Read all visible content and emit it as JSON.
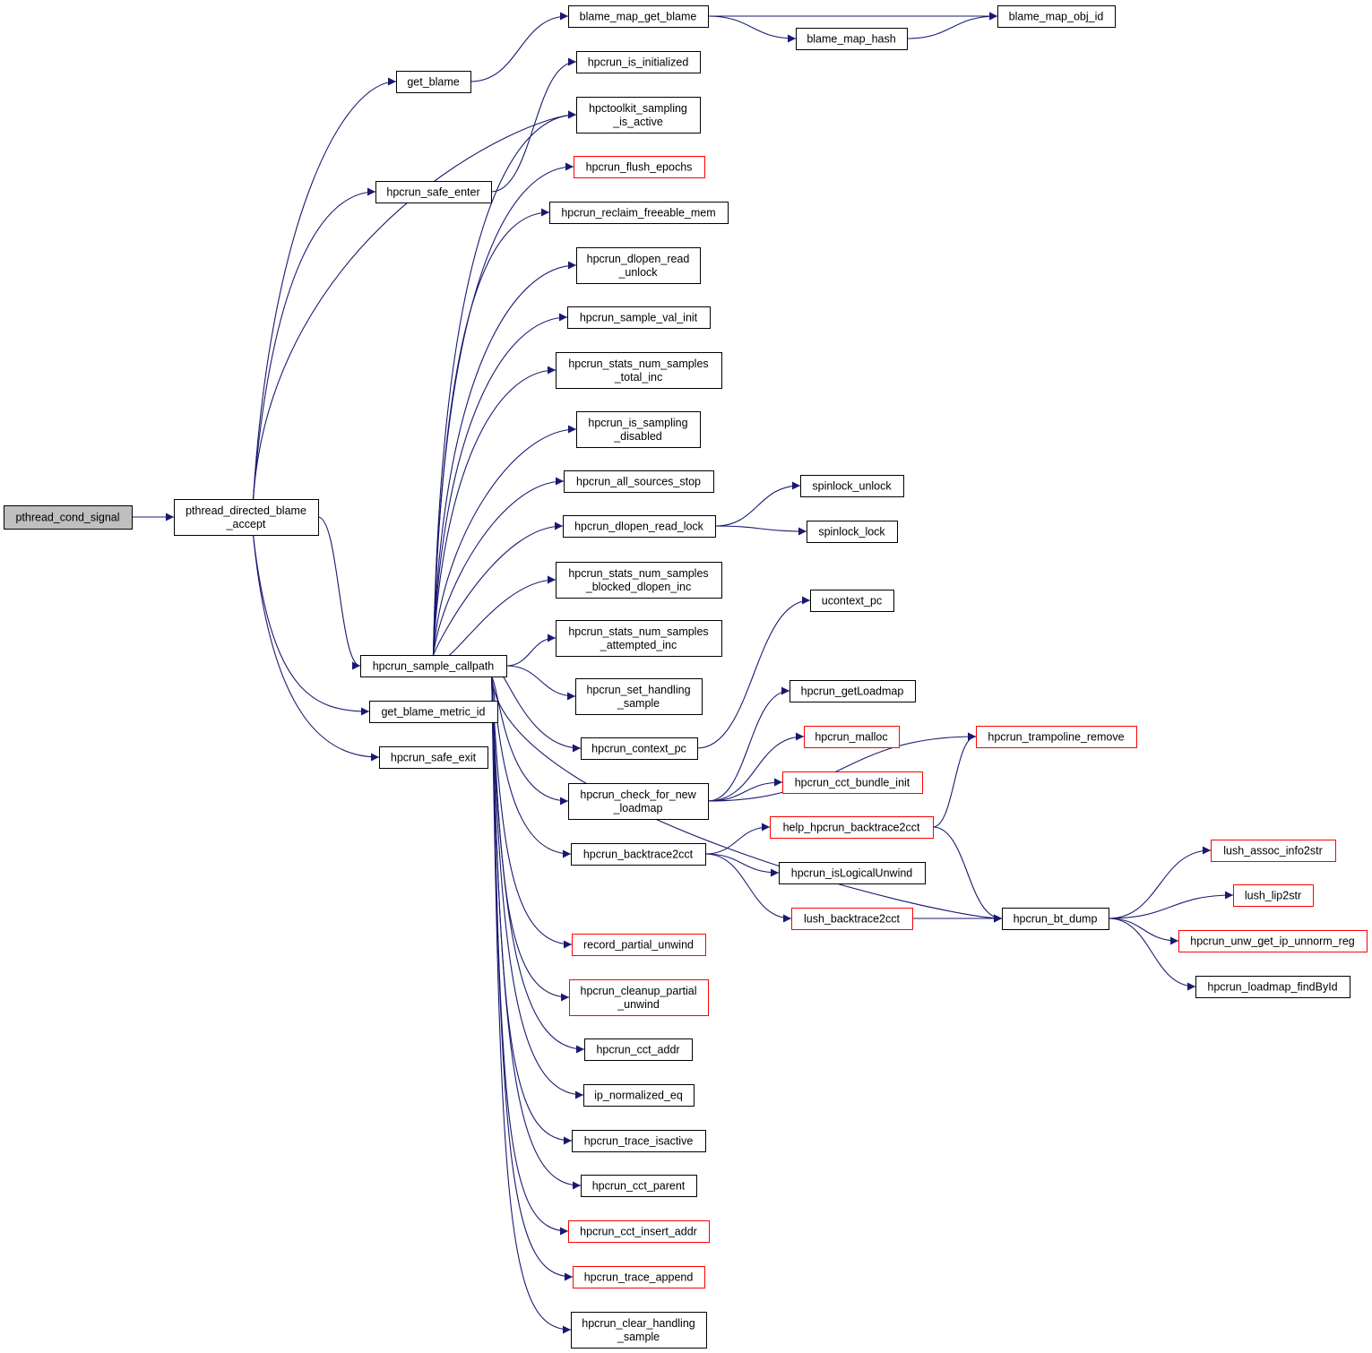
{
  "colors": {
    "edge": "#191970",
    "normal_border": "#000000",
    "truncated_border": "#ff0000",
    "root_fill": "#bfbfbf",
    "node_fill": "#ffffff"
  },
  "nodes": [
    {
      "id": "pthread_cond_signal",
      "lines": [
        "pthread_cond_signal"
      ],
      "style": "root"
    },
    {
      "id": "pthread_directed_blame_accept",
      "lines": [
        "pthread_directed_blame",
        "_accept"
      ],
      "style": "normal"
    },
    {
      "id": "get_blame",
      "lines": [
        "get_blame"
      ],
      "style": "normal"
    },
    {
      "id": "hpcrun_safe_enter",
      "lines": [
        "hpcrun_safe_enter"
      ],
      "style": "normal"
    },
    {
      "id": "hpcrun_sample_callpath",
      "lines": [
        "hpcrun_sample_callpath"
      ],
      "style": "normal"
    },
    {
      "id": "get_blame_metric_id",
      "lines": [
        "get_blame_metric_id"
      ],
      "style": "normal"
    },
    {
      "id": "hpcrun_safe_exit",
      "lines": [
        "hpcrun_safe_exit"
      ],
      "style": "normal"
    },
    {
      "id": "blame_map_get_blame",
      "lines": [
        "blame_map_get_blame"
      ],
      "style": "normal"
    },
    {
      "id": "blame_map_obj_id",
      "lines": [
        "blame_map_obj_id"
      ],
      "style": "normal"
    },
    {
      "id": "blame_map_hash",
      "lines": [
        "blame_map_hash"
      ],
      "style": "normal"
    },
    {
      "id": "hpcrun_is_initialized",
      "lines": [
        "hpcrun_is_initialized"
      ],
      "style": "normal"
    },
    {
      "id": "hpctoolkit_sampling_is_active",
      "lines": [
        "hpctoolkit_sampling",
        "_is_active"
      ],
      "style": "normal"
    },
    {
      "id": "hpcrun_flush_epochs",
      "lines": [
        "hpcrun_flush_epochs"
      ],
      "style": "truncated"
    },
    {
      "id": "hpcrun_reclaim_freeable_mem",
      "lines": [
        "hpcrun_reclaim_freeable_mem"
      ],
      "style": "normal"
    },
    {
      "id": "hpcrun_dlopen_read_unlock",
      "lines": [
        "hpcrun_dlopen_read",
        "_unlock"
      ],
      "style": "normal"
    },
    {
      "id": "hpcrun_sample_val_init",
      "lines": [
        "hpcrun_sample_val_init"
      ],
      "style": "normal"
    },
    {
      "id": "hpcrun_stats_num_samples_total_inc",
      "lines": [
        "hpcrun_stats_num_samples",
        "_total_inc"
      ],
      "style": "normal"
    },
    {
      "id": "hpcrun_is_sampling_disabled",
      "lines": [
        "hpcrun_is_sampling",
        "_disabled"
      ],
      "style": "normal"
    },
    {
      "id": "hpcrun_all_sources_stop",
      "lines": [
        "hpcrun_all_sources_stop"
      ],
      "style": "normal"
    },
    {
      "id": "hpcrun_dlopen_read_lock",
      "lines": [
        "hpcrun_dlopen_read_lock"
      ],
      "style": "normal"
    },
    {
      "id": "spinlock_unlock",
      "lines": [
        "spinlock_unlock"
      ],
      "style": "normal"
    },
    {
      "id": "spinlock_lock",
      "lines": [
        "spinlock_lock"
      ],
      "style": "normal"
    },
    {
      "id": "hpcrun_stats_num_samples_blocked_dlopen_inc",
      "lines": [
        "hpcrun_stats_num_samples",
        "_blocked_dlopen_inc"
      ],
      "style": "normal"
    },
    {
      "id": "hpcrun_stats_num_samples_attempted_inc",
      "lines": [
        "hpcrun_stats_num_samples",
        "_attempted_inc"
      ],
      "style": "normal"
    },
    {
      "id": "hpcrun_set_handling_sample",
      "lines": [
        "hpcrun_set_handling",
        "_sample"
      ],
      "style": "normal"
    },
    {
      "id": "hpcrun_context_pc",
      "lines": [
        "hpcrun_context_pc"
      ],
      "style": "normal"
    },
    {
      "id": "ucontext_pc",
      "lines": [
        "ucontext_pc"
      ],
      "style": "normal"
    },
    {
      "id": "hpcrun_check_for_new_loadmap",
      "lines": [
        "hpcrun_check_for_new",
        "_loadmap"
      ],
      "style": "normal"
    },
    {
      "id": "hpcrun_getLoadmap",
      "lines": [
        "hpcrun_getLoadmap"
      ],
      "style": "normal"
    },
    {
      "id": "hpcrun_malloc",
      "lines": [
        "hpcrun_malloc"
      ],
      "style": "truncated"
    },
    {
      "id": "hpcrun_trampoline_remove",
      "lines": [
        "hpcrun_trampoline_remove"
      ],
      "style": "truncated"
    },
    {
      "id": "hpcrun_cct_bundle_init",
      "lines": [
        "hpcrun_cct_bundle_init"
      ],
      "style": "truncated"
    },
    {
      "id": "help_hpcrun_backtrace2cct",
      "lines": [
        "help_hpcrun_backtrace2cct"
      ],
      "style": "truncated"
    },
    {
      "id": "hpcrun_backtrace2cct",
      "lines": [
        "hpcrun_backtrace2cct"
      ],
      "style": "normal"
    },
    {
      "id": "hpcrun_isLogicalUnwind",
      "lines": [
        "hpcrun_isLogicalUnwind"
      ],
      "style": "normal"
    },
    {
      "id": "lush_backtrace2cct",
      "lines": [
        "lush_backtrace2cct"
      ],
      "style": "truncated"
    },
    {
      "id": "hpcrun_bt_dump",
      "lines": [
        "hpcrun_bt_dump"
      ],
      "style": "normal"
    },
    {
      "id": "lush_assoc_info2str",
      "lines": [
        "lush_assoc_info2str"
      ],
      "style": "truncated"
    },
    {
      "id": "lush_lip2str",
      "lines": [
        "lush_lip2str"
      ],
      "style": "truncated"
    },
    {
      "id": "hpcrun_unw_get_ip_unnorm_reg",
      "lines": [
        "hpcrun_unw_get_ip_unnorm_reg"
      ],
      "style": "truncated"
    },
    {
      "id": "hpcrun_loadmap_findById",
      "lines": [
        "hpcrun_loadmap_findById"
      ],
      "style": "normal"
    },
    {
      "id": "record_partial_unwind",
      "lines": [
        "record_partial_unwind"
      ],
      "style": "truncated"
    },
    {
      "id": "hpcrun_cleanup_partial_unwind",
      "lines": [
        "hpcrun_cleanup_partial",
        "_unwind"
      ],
      "style": "truncated"
    },
    {
      "id": "hpcrun_cct_addr",
      "lines": [
        "hpcrun_cct_addr"
      ],
      "style": "normal"
    },
    {
      "id": "ip_normalized_eq",
      "lines": [
        "ip_normalized_eq"
      ],
      "style": "normal"
    },
    {
      "id": "hpcrun_trace_isactive",
      "lines": [
        "hpcrun_trace_isactive"
      ],
      "style": "normal"
    },
    {
      "id": "hpcrun_cct_parent",
      "lines": [
        "hpcrun_cct_parent"
      ],
      "style": "normal"
    },
    {
      "id": "hpcrun_cct_insert_addr",
      "lines": [
        "hpcrun_cct_insert_addr"
      ],
      "style": "truncated"
    },
    {
      "id": "hpcrun_trace_append",
      "lines": [
        "hpcrun_trace_append"
      ],
      "style": "truncated"
    },
    {
      "id": "hpcrun_clear_handling_sample",
      "lines": [
        "hpcrun_clear_handling",
        "_sample"
      ],
      "style": "normal"
    }
  ],
  "edges": [
    [
      "pthread_cond_signal",
      "pthread_directed_blame_accept"
    ],
    [
      "pthread_directed_blame_accept",
      "get_blame"
    ],
    [
      "pthread_directed_blame_accept",
      "hpcrun_safe_enter"
    ],
    [
      "pthread_directed_blame_accept",
      "hpctoolkit_sampling_is_active"
    ],
    [
      "pthread_directed_blame_accept",
      "hpcrun_sample_callpath"
    ],
    [
      "pthread_directed_blame_accept",
      "get_blame_metric_id"
    ],
    [
      "pthread_directed_blame_accept",
      "hpcrun_safe_exit"
    ],
    [
      "get_blame",
      "blame_map_get_blame"
    ],
    [
      "blame_map_get_blame",
      "blame_map_obj_id"
    ],
    [
      "blame_map_get_blame",
      "blame_map_hash"
    ],
    [
      "blame_map_hash",
      "blame_map_obj_id"
    ],
    [
      "hpcrun_safe_enter",
      "hpcrun_is_initialized"
    ],
    [
      "hpcrun_sample_callpath",
      "hpctoolkit_sampling_is_active"
    ],
    [
      "hpcrun_sample_callpath",
      "hpcrun_flush_epochs"
    ],
    [
      "hpcrun_sample_callpath",
      "hpcrun_reclaim_freeable_mem"
    ],
    [
      "hpcrun_sample_callpath",
      "hpcrun_dlopen_read_unlock"
    ],
    [
      "hpcrun_sample_callpath",
      "hpcrun_sample_val_init"
    ],
    [
      "hpcrun_sample_callpath",
      "hpcrun_stats_num_samples_total_inc"
    ],
    [
      "hpcrun_sample_callpath",
      "hpcrun_is_sampling_disabled"
    ],
    [
      "hpcrun_sample_callpath",
      "hpcrun_all_sources_stop"
    ],
    [
      "hpcrun_sample_callpath",
      "hpcrun_dlopen_read_lock"
    ],
    [
      "hpcrun_sample_callpath",
      "hpcrun_stats_num_samples_blocked_dlopen_inc"
    ],
    [
      "hpcrun_sample_callpath",
      "hpcrun_stats_num_samples_attempted_inc"
    ],
    [
      "hpcrun_sample_callpath",
      "hpcrun_set_handling_sample"
    ],
    [
      "hpcrun_sample_callpath",
      "hpcrun_context_pc"
    ],
    [
      "hpcrun_sample_callpath",
      "hpcrun_check_for_new_loadmap"
    ],
    [
      "hpcrun_sample_callpath",
      "hpcrun_backtrace2cct"
    ],
    [
      "hpcrun_sample_callpath",
      "hpcrun_bt_dump"
    ],
    [
      "hpcrun_sample_callpath",
      "record_partial_unwind"
    ],
    [
      "hpcrun_sample_callpath",
      "hpcrun_cleanup_partial_unwind"
    ],
    [
      "hpcrun_sample_callpath",
      "hpcrun_cct_addr"
    ],
    [
      "hpcrun_sample_callpath",
      "ip_normalized_eq"
    ],
    [
      "hpcrun_sample_callpath",
      "hpcrun_trace_isactive"
    ],
    [
      "hpcrun_sample_callpath",
      "hpcrun_cct_parent"
    ],
    [
      "hpcrun_sample_callpath",
      "hpcrun_cct_insert_addr"
    ],
    [
      "hpcrun_sample_callpath",
      "hpcrun_trace_append"
    ],
    [
      "hpcrun_sample_callpath",
      "hpcrun_clear_handling_sample"
    ],
    [
      "hpcrun_dlopen_read_lock",
      "spinlock_unlock"
    ],
    [
      "hpcrun_dlopen_read_lock",
      "spinlock_lock"
    ],
    [
      "hpcrun_context_pc",
      "ucontext_pc"
    ],
    [
      "hpcrun_check_for_new_loadmap",
      "hpcrun_getLoadmap"
    ],
    [
      "hpcrun_check_for_new_loadmap",
      "hpcrun_malloc"
    ],
    [
      "hpcrun_check_for_new_loadmap",
      "hpcrun_cct_bundle_init"
    ],
    [
      "hpcrun_check_for_new_loadmap",
      "hpcrun_trampoline_remove"
    ],
    [
      "hpcrun_backtrace2cct",
      "help_hpcrun_backtrace2cct"
    ],
    [
      "hpcrun_backtrace2cct",
      "hpcrun_isLogicalUnwind"
    ],
    [
      "hpcrun_backtrace2cct",
      "lush_backtrace2cct"
    ],
    [
      "help_hpcrun_backtrace2cct",
      "hpcrun_trampoline_remove"
    ],
    [
      "help_hpcrun_backtrace2cct",
      "hpcrun_bt_dump"
    ],
    [
      "lush_backtrace2cct",
      "hpcrun_bt_dump"
    ],
    [
      "hpcrun_bt_dump",
      "lush_assoc_info2str"
    ],
    [
      "hpcrun_bt_dump",
      "lush_lip2str"
    ],
    [
      "hpcrun_bt_dump",
      "hpcrun_unw_get_ip_unnorm_reg"
    ],
    [
      "hpcrun_bt_dump",
      "hpcrun_loadmap_findById"
    ]
  ]
}
